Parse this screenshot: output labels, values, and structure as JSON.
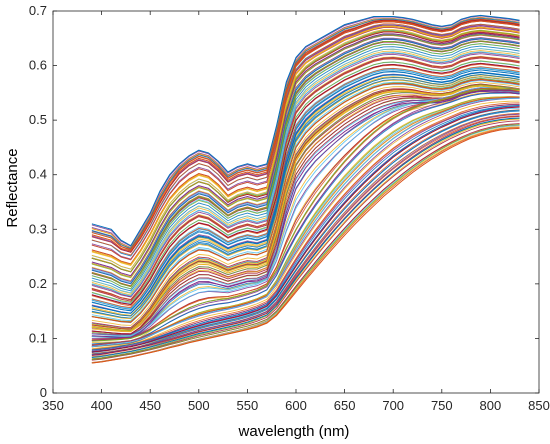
{
  "chart_data": {
    "type": "line",
    "title": "",
    "xlabel": "wavelength (nm)",
    "ylabel": "Reflectance",
    "xlim": [
      350,
      850
    ],
    "ylim": [
      0,
      0.7
    ],
    "x_ticks": [
      350,
      400,
      450,
      500,
      550,
      600,
      650,
      700,
      750,
      800,
      850
    ],
    "y_ticks": [
      0,
      0.1,
      0.2,
      0.3,
      0.4,
      0.5,
      0.6,
      0.7
    ],
    "x_tick_labels": [
      "350",
      "400",
      "450",
      "500",
      "550",
      "600",
      "650",
      "700",
      "750",
      "800",
      "850"
    ],
    "y_tick_labels": [
      "0",
      "0.1",
      "0.2",
      "0.3",
      "0.4",
      "0.5",
      "0.6",
      "0.7"
    ],
    "grid": false,
    "legend": "none",
    "x": [
      390,
      400,
      410,
      420,
      430,
      440,
      450,
      460,
      470,
      480,
      490,
      500,
      510,
      520,
      530,
      540,
      550,
      560,
      570,
      580,
      590,
      600,
      610,
      620,
      630,
      640,
      650,
      660,
      670,
      680,
      690,
      700,
      710,
      720,
      730,
      740,
      750,
      760,
      770,
      780,
      790,
      800,
      810,
      820,
      830
    ],
    "series": [
      {
        "values": [
          0.31,
          0.305,
          0.3,
          0.28,
          0.27,
          0.3,
          0.33,
          0.37,
          0.4,
          0.42,
          0.435,
          0.445,
          0.44,
          0.425,
          0.405,
          0.415,
          0.42,
          0.415,
          0.42,
          0.49,
          0.57,
          0.615,
          0.635,
          0.645,
          0.655,
          0.665,
          0.675,
          0.68,
          0.685,
          0.69,
          0.69,
          0.69,
          0.688,
          0.685,
          0.68,
          0.675,
          0.672,
          0.675,
          0.685,
          0.69,
          0.692,
          0.69,
          0.688,
          0.686,
          0.683
        ]
      },
      {
        "values": [
          0.29,
          0.285,
          0.28,
          0.265,
          0.26,
          0.285,
          0.315,
          0.35,
          0.38,
          0.405,
          0.42,
          0.43,
          0.425,
          0.41,
          0.39,
          0.4,
          0.405,
          0.4,
          0.405,
          0.47,
          0.55,
          0.6,
          0.62,
          0.63,
          0.64,
          0.65,
          0.66,
          0.665,
          0.672,
          0.678,
          0.68,
          0.68,
          0.678,
          0.675,
          0.67,
          0.665,
          0.662,
          0.665,
          0.675,
          0.68,
          0.682,
          0.68,
          0.678,
          0.676,
          0.673
        ]
      },
      {
        "values": [
          0.26,
          0.255,
          0.25,
          0.24,
          0.235,
          0.26,
          0.29,
          0.325,
          0.355,
          0.375,
          0.39,
          0.4,
          0.395,
          0.38,
          0.36,
          0.37,
          0.375,
          0.37,
          0.375,
          0.445,
          0.53,
          0.585,
          0.605,
          0.618,
          0.628,
          0.638,
          0.648,
          0.655,
          0.662,
          0.668,
          0.672,
          0.672,
          0.67,
          0.666,
          0.66,
          0.655,
          0.652,
          0.655,
          0.664,
          0.668,
          0.67,
          0.668,
          0.666,
          0.664,
          0.661
        ]
      },
      {
        "values": [
          0.24,
          0.235,
          0.23,
          0.22,
          0.215,
          0.24,
          0.27,
          0.305,
          0.335,
          0.355,
          0.37,
          0.38,
          0.375,
          0.36,
          0.345,
          0.355,
          0.36,
          0.355,
          0.36,
          0.43,
          0.515,
          0.57,
          0.59,
          0.603,
          0.613,
          0.623,
          0.633,
          0.64,
          0.648,
          0.654,
          0.658,
          0.658,
          0.656,
          0.652,
          0.647,
          0.642,
          0.64,
          0.643,
          0.652,
          0.657,
          0.659,
          0.657,
          0.655,
          0.653,
          0.65
        ]
      },
      {
        "values": [
          0.22,
          0.215,
          0.21,
          0.2,
          0.195,
          0.22,
          0.25,
          0.285,
          0.315,
          0.335,
          0.35,
          0.36,
          0.355,
          0.34,
          0.325,
          0.335,
          0.34,
          0.335,
          0.34,
          0.41,
          0.495,
          0.55,
          0.572,
          0.586,
          0.597,
          0.607,
          0.617,
          0.625,
          0.633,
          0.64,
          0.644,
          0.644,
          0.642,
          0.638,
          0.633,
          0.628,
          0.626,
          0.629,
          0.638,
          0.643,
          0.645,
          0.643,
          0.641,
          0.639,
          0.636
        ]
      },
      {
        "values": [
          0.2,
          0.195,
          0.19,
          0.182,
          0.178,
          0.2,
          0.228,
          0.262,
          0.29,
          0.31,
          0.325,
          0.335,
          0.33,
          0.318,
          0.305,
          0.313,
          0.318,
          0.313,
          0.318,
          0.385,
          0.47,
          0.525,
          0.548,
          0.563,
          0.575,
          0.586,
          0.596,
          0.604,
          0.612,
          0.619,
          0.623,
          0.624,
          0.622,
          0.618,
          0.613,
          0.608,
          0.606,
          0.609,
          0.618,
          0.623,
          0.625,
          0.623,
          0.621,
          0.619,
          0.616
        ]
      },
      {
        "values": [
          0.18,
          0.175,
          0.17,
          0.165,
          0.162,
          0.182,
          0.208,
          0.24,
          0.268,
          0.288,
          0.302,
          0.312,
          0.308,
          0.297,
          0.285,
          0.293,
          0.298,
          0.294,
          0.3,
          0.36,
          0.445,
          0.5,
          0.524,
          0.54,
          0.552,
          0.563,
          0.574,
          0.582,
          0.59,
          0.597,
          0.601,
          0.602,
          0.6,
          0.597,
          0.592,
          0.588,
          0.586,
          0.589,
          0.597,
          0.602,
          0.604,
          0.602,
          0.6,
          0.598,
          0.595
        ]
      },
      {
        "values": [
          0.16,
          0.156,
          0.152,
          0.148,
          0.146,
          0.164,
          0.188,
          0.218,
          0.245,
          0.265,
          0.278,
          0.288,
          0.285,
          0.275,
          0.265,
          0.272,
          0.277,
          0.274,
          0.28,
          0.34,
          0.42,
          0.475,
          0.5,
          0.517,
          0.53,
          0.542,
          0.553,
          0.562,
          0.57,
          0.577,
          0.582,
          0.583,
          0.582,
          0.579,
          0.575,
          0.571,
          0.569,
          0.572,
          0.58,
          0.585,
          0.587,
          0.585,
          0.583,
          0.581,
          0.578
        ]
      },
      {
        "values": [
          0.14,
          0.137,
          0.134,
          0.131,
          0.13,
          0.146,
          0.168,
          0.196,
          0.222,
          0.24,
          0.253,
          0.262,
          0.26,
          0.252,
          0.243,
          0.25,
          0.255,
          0.253,
          0.26,
          0.32,
          0.395,
          0.45,
          0.476,
          0.494,
          0.508,
          0.521,
          0.533,
          0.543,
          0.552,
          0.56,
          0.565,
          0.567,
          0.567,
          0.565,
          0.561,
          0.558,
          0.557,
          0.56,
          0.568,
          0.573,
          0.575,
          0.573,
          0.571,
          0.569,
          0.566
        ]
      },
      {
        "values": [
          0.12,
          0.118,
          0.116,
          0.114,
          0.113,
          0.127,
          0.148,
          0.174,
          0.198,
          0.215,
          0.227,
          0.236,
          0.235,
          0.228,
          0.22,
          0.226,
          0.231,
          0.23,
          0.237,
          0.295,
          0.37,
          0.425,
          0.452,
          0.471,
          0.486,
          0.5,
          0.513,
          0.524,
          0.534,
          0.543,
          0.549,
          0.552,
          0.553,
          0.552,
          0.549,
          0.547,
          0.546,
          0.549,
          0.556,
          0.561,
          0.563,
          0.561,
          0.559,
          0.557,
          0.554
        ]
      },
      {
        "values": [
          0.105,
          0.104,
          0.103,
          0.102,
          0.102,
          0.112,
          0.128,
          0.15,
          0.17,
          0.185,
          0.196,
          0.204,
          0.204,
          0.199,
          0.194,
          0.199,
          0.204,
          0.205,
          0.212,
          0.26,
          0.33,
          0.385,
          0.413,
          0.434,
          0.45,
          0.465,
          0.479,
          0.491,
          0.502,
          0.512,
          0.52,
          0.526,
          0.53,
          0.532,
          0.532,
          0.532,
          0.533,
          0.537,
          0.545,
          0.55,
          0.553,
          0.552,
          0.551,
          0.55,
          0.548
        ]
      },
      {
        "values": [
          0.095,
          0.096,
          0.097,
          0.098,
          0.1,
          0.106,
          0.115,
          0.126,
          0.137,
          0.147,
          0.156,
          0.163,
          0.168,
          0.171,
          0.173,
          0.177,
          0.182,
          0.188,
          0.197,
          0.225,
          0.265,
          0.3,
          0.33,
          0.357,
          0.381,
          0.404,
          0.425,
          0.444,
          0.462,
          0.478,
          0.492,
          0.504,
          0.514,
          0.522,
          0.528,
          0.533,
          0.537,
          0.542,
          0.548,
          0.553,
          0.556,
          0.557,
          0.557,
          0.557,
          0.556
        ]
      },
      {
        "values": [
          0.085,
          0.087,
          0.089,
          0.091,
          0.093,
          0.098,
          0.105,
          0.113,
          0.121,
          0.129,
          0.136,
          0.142,
          0.147,
          0.151,
          0.154,
          0.158,
          0.163,
          0.169,
          0.177,
          0.2,
          0.232,
          0.262,
          0.29,
          0.316,
          0.34,
          0.362,
          0.383,
          0.402,
          0.42,
          0.437,
          0.452,
          0.466,
          0.478,
          0.489,
          0.498,
          0.506,
          0.513,
          0.52,
          0.527,
          0.532,
          0.536,
          0.538,
          0.539,
          0.54,
          0.54
        ]
      },
      {
        "values": [
          0.075,
          0.077,
          0.079,
          0.082,
          0.085,
          0.089,
          0.094,
          0.1,
          0.106,
          0.112,
          0.118,
          0.123,
          0.128,
          0.132,
          0.136,
          0.14,
          0.145,
          0.151,
          0.159,
          0.178,
          0.205,
          0.232,
          0.258,
          0.282,
          0.305,
          0.327,
          0.347,
          0.366,
          0.384,
          0.401,
          0.417,
          0.432,
          0.445,
          0.457,
          0.468,
          0.478,
          0.487,
          0.495,
          0.503,
          0.509,
          0.514,
          0.518,
          0.521,
          0.523,
          0.524
        ]
      },
      {
        "values": [
          0.065,
          0.067,
          0.07,
          0.073,
          0.076,
          0.08,
          0.084,
          0.089,
          0.094,
          0.099,
          0.104,
          0.109,
          0.113,
          0.117,
          0.121,
          0.125,
          0.13,
          0.136,
          0.143,
          0.16,
          0.185,
          0.21,
          0.233,
          0.256,
          0.278,
          0.299,
          0.319,
          0.338,
          0.356,
          0.373,
          0.389,
          0.404,
          0.418,
          0.431,
          0.443,
          0.454,
          0.464,
          0.473,
          0.481,
          0.488,
          0.494,
          0.498,
          0.501,
          0.503,
          0.504
        ]
      },
      {
        "values": [
          0.055,
          0.057,
          0.06,
          0.063,
          0.066,
          0.07,
          0.074,
          0.078,
          0.083,
          0.087,
          0.092,
          0.096,
          0.1,
          0.104,
          0.108,
          0.112,
          0.116,
          0.121,
          0.128,
          0.142,
          0.163,
          0.185,
          0.207,
          0.228,
          0.249,
          0.269,
          0.289,
          0.308,
          0.326,
          0.343,
          0.36,
          0.375,
          0.39,
          0.404,
          0.417,
          0.429,
          0.44,
          0.45,
          0.459,
          0.467,
          0.473,
          0.478,
          0.482,
          0.484,
          0.485
        ]
      }
    ]
  }
}
